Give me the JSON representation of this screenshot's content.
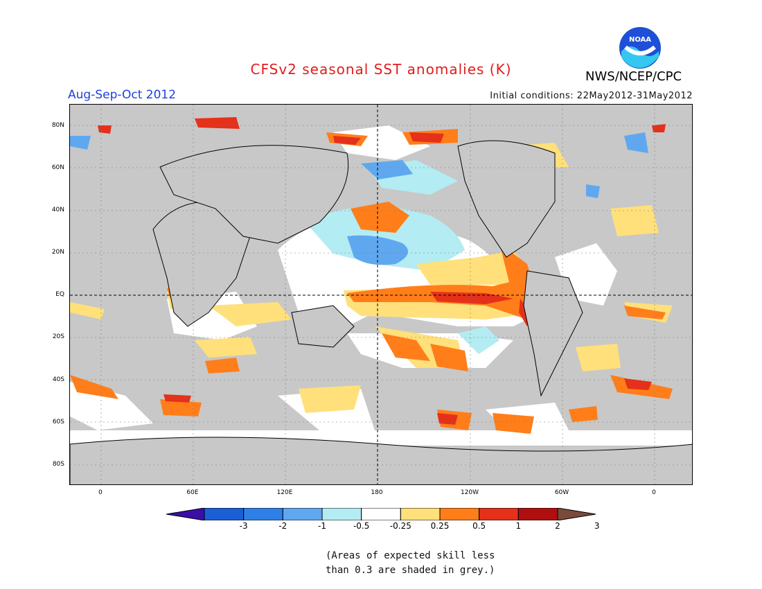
{
  "header": {
    "title": "CFSv2 seasonal SST anomalies (K)",
    "period": "Aug-Sep-Oct 2012",
    "initial_conditions": "Initial conditions: 22May2012-31May2012",
    "agency": "NWS/NCEP/CPC",
    "logo_text": "NOAA"
  },
  "map": {
    "lat_labels": [
      "80N",
      "60N",
      "40N",
      "20N",
      "EQ",
      "20S",
      "40S",
      "60S",
      "80S"
    ],
    "lon_labels": [
      "0",
      "60E",
      "120E",
      "180",
      "120W",
      "60W",
      "0"
    ],
    "colors": {
      "land": "#c8c8c8",
      "low_skill": "#c8c8c8",
      "ocean_neutral": "#ffffff"
    }
  },
  "colorbar": {
    "labels": [
      "-3",
      "-2",
      "-1",
      "-0.5",
      "-0.25",
      "0.25",
      "0.5",
      "1",
      "2",
      "3"
    ],
    "colors": [
      "#3a0fa8",
      "#1a5fd6",
      "#2f80e6",
      "#5fa8f0",
      "#b3ecf2",
      "#ffffff",
      "#ffe07a",
      "#ff7e1a",
      "#e5301a",
      "#b00f0f",
      "#7a4a3a"
    ]
  },
  "note": {
    "line1": "(Areas of expected skill less",
    "line2": "than 0.3 are shaded in grey.)"
  }
}
